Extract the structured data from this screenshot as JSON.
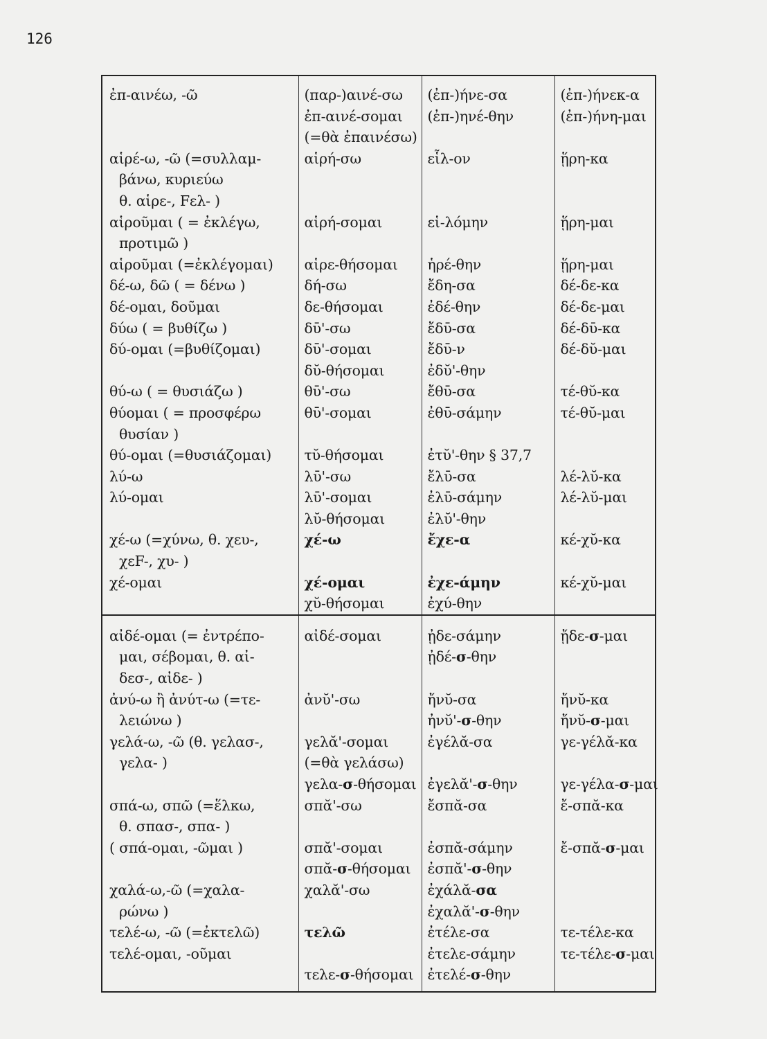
{
  "page_number": "126",
  "table": {
    "sections": [
      {
        "rows": [
          [
            [
              "ἐπ-αινέω, -ῶ"
            ],
            [
              "(παρ-)αινέ-σω",
              "ἐπ-αινέ-σομαι",
              "(=θὰ ἐπαινέσω)"
            ],
            [
              "(ἐπ-)ήνε-σα",
              "(ἐπ-)ηνέ-θην"
            ],
            [
              "(ἐπ-)ήνεκ-α",
              "(ἐπ-)ήνη-μαι"
            ]
          ],
          [
            [
              "αἱρέ-ω, -ῶ (=συλλαμ-",
              "βάνω, κυριεύω",
              "θ. αἱρε-, Fελ- )"
            ],
            [
              "αἱρή-σω"
            ],
            [
              "εἷλ-ον"
            ],
            [
              "ᾕρη-κα"
            ]
          ],
          [
            [
              "αἱροῦμαι ( = ἐκλέγω,",
              "προτιμῶ )"
            ],
            [
              "αἱρή-σομαι"
            ],
            [
              "εἱ-λόμην"
            ],
            [
              "ᾕρη-μαι"
            ]
          ],
          [
            [
              "αἱροῦμαι (=ἐκλέγομαι)"
            ],
            [
              "αἱρε-θήσομαι"
            ],
            [
              "ἡρέ-θην"
            ],
            [
              "ᾕρη-μαι"
            ]
          ],
          [
            [
              "δέ-ω, δῶ ( = δένω )"
            ],
            [
              "δή-σω"
            ],
            [
              "ἔδη-σα"
            ],
            [
              "δέ-δε-κα"
            ]
          ],
          [
            [
              "δέ-ομαι, δοῦμαι"
            ],
            [
              "δε-θήσομαι"
            ],
            [
              "ἐδέ-θην"
            ],
            [
              "δέ-δε-μαι"
            ]
          ],
          [
            [
              "δύω ( = βυθίζω )"
            ],
            [
              "δῡ'-σω"
            ],
            [
              "ἔδῡ-σα"
            ],
            [
              "δέ-δῡ-κα"
            ]
          ],
          [
            [
              "δύ-ομαι (=βυθίζομαι)",
              ""
            ],
            [
              "δῡ'-σομαι",
              "δῠ-θήσομαι"
            ],
            [
              "ἔδῡ-ν",
              "ἐδῠ'-θην"
            ],
            [
              "δέ-δῠ-μαι",
              ""
            ]
          ],
          [
            [
              "θύ-ω ( = θυσιάζω )"
            ],
            [
              "θῡ'-σω"
            ],
            [
              "ἔθῡ-σα"
            ],
            [
              "τέ-θῠ-κα"
            ]
          ],
          [
            [
              "θύομαι ( = προσφέρω",
              "θυσίαν )"
            ],
            [
              "θῡ'-σομαι"
            ],
            [
              "ἐθῡ-σάμην"
            ],
            [
              "τέ-θῠ-μαι"
            ]
          ],
          [
            [
              "θύ-ομαι (=θυσιάζομαι)"
            ],
            [
              "τῠ-θήσομαι"
            ],
            [
              "ἐτῠ'-θην § 37,7"
            ],
            [
              ""
            ]
          ],
          [
            [
              "λύ-ω"
            ],
            [
              "λῡ'-σω"
            ],
            [
              "ἔλῡ-σα"
            ],
            [
              "λέ-λῠ-κα"
            ]
          ],
          [
            [
              "λύ-ομαι",
              ""
            ],
            [
              "λῡ'-σομαι",
              "λῠ-θήσομαι"
            ],
            [
              "ἐλῡ-σάμην",
              "ἐλῠ'-θην"
            ],
            [
              "λέ-λῠ-μαι",
              ""
            ]
          ],
          [
            [
              "χέ-ω (=χύνω, θ. χευ-,",
              "χεF-, χυ- )"
            ],
            [
              [
                {
                  "bold": "χέ-ω"
                }
              ]
            ],
            [
              [
                {
                  "bold": "ἔχε-α"
                }
              ]
            ],
            [
              "κέ-χῠ-κα"
            ]
          ],
          [
            [
              "χέ-ομαι",
              ""
            ],
            [
              [
                {
                  "bold": "χέ-ομαι"
                }
              ],
              "χῠ-θήσομαι"
            ],
            [
              [
                {
                  "bold": "ἐχε-άμην"
                }
              ],
              "ἐχύ-θην"
            ],
            [
              "κέ-χῠ-μαι",
              ""
            ]
          ]
        ]
      },
      {
        "rows": [
          [
            [
              "αἰδέ-ομαι (= ἐντρέπο-",
              "μαι, σέβομαι, θ. αἰ-",
              "δεσ-, αἰδε- )"
            ],
            [
              "αἰδέ-σομαι"
            ],
            [
              "ᾐδε-σάμην",
              [
                "ᾐδέ-",
                {
                  "bold": "σ"
                },
                "-θην"
              ]
            ],
            [
              [
                "ᾔδε-",
                {
                  "bold": "σ"
                },
                "-μαι"
              ]
            ]
          ],
          [
            [
              "ἀνύ-ω ἢ ἀνύτ-ω (=τε-",
              "λειώνω )"
            ],
            [
              "ἀνῠ'-σω"
            ],
            [
              "ἤνῠ-σα",
              [
                "ἠνῠ'-",
                {
                  "bold": "σ"
                },
                "-θην"
              ]
            ],
            [
              "ἤνῠ-κα",
              [
                "ἤνῠ-",
                {
                  "bold": "σ"
                },
                "-μαι"
              ]
            ]
          ],
          [
            [
              "γελά-ω, -ῶ (θ. γελασ-,",
              "γελα- )",
              ""
            ],
            [
              "γελᾰ'-σομαι",
              "(=θὰ γελάσω)",
              [
                "γελα-",
                {
                  "bold": "σ"
                },
                "-θήσομαι"
              ]
            ],
            [
              "ἐγέλᾰ-σα",
              "",
              [
                "ἐγελᾰ'-",
                {
                  "bold": "σ"
                },
                "-θην"
              ]
            ],
            [
              "γε-γέλᾰ-κα",
              "",
              [
                "γε-γέλα-",
                {
                  "bold": "σ"
                },
                "-μαι"
              ]
            ]
          ],
          [
            [
              "σπά-ω, σπῶ (=ἕλκω,",
              "θ. σπασ-, σπα- )"
            ],
            [
              "σπᾰ'-σω"
            ],
            [
              "ἔσπᾰ-σα"
            ],
            [
              "ἔ-σπᾰ-κα"
            ]
          ],
          [
            [
              "( σπά-ομαι, -ῶμαι )",
              ""
            ],
            [
              "σπᾰ'-σομαι",
              [
                "σπᾰ-",
                {
                  "bold": "σ"
                },
                "-θήσομαι"
              ]
            ],
            [
              "ἐσπᾰ-σάμην",
              [
                "ἐσπᾰ'-",
                {
                  "bold": "σ"
                },
                "-θην"
              ]
            ],
            [
              [
                "ἔ-σπᾰ-",
                {
                  "bold": "σ"
                },
                "-μαι"
              ],
              ""
            ]
          ],
          [
            [
              "χαλά-ω,-ῶ (=χαλα-",
              "ρώνω )"
            ],
            [
              "χαλᾰ'-σω"
            ],
            [
              [
                "ἐχάλᾰ-",
                {
                  "bold": "σα"
                }
              ],
              [
                "ἐχαλᾰ'-",
                {
                  "bold": "σ"
                },
                "-θην"
              ]
            ],
            [
              ""
            ]
          ],
          [
            [
              "τελέ-ω, -ῶ (=ἐκτελῶ)"
            ],
            [
              [
                {
                  "bold": "τελῶ"
                }
              ]
            ],
            [
              "ἐτέλε-σα"
            ],
            [
              "τε-τέλε-κα"
            ]
          ],
          [
            [
              "τελέ-ομαι, -οῦμαι",
              ""
            ],
            [
              "",
              [
                "τελε-",
                {
                  "bold": "σ"
                },
                "-θήσομαι"
              ]
            ],
            [
              "ἐτελε-σάμην",
              [
                "ἐτελέ-",
                {
                  "bold": "σ"
                },
                "-θην"
              ]
            ],
            [
              [
                "τε-τέλε-",
                {
                  "bold": "σ"
                },
                "-μαι"
              ],
              ""
            ]
          ]
        ]
      }
    ]
  }
}
